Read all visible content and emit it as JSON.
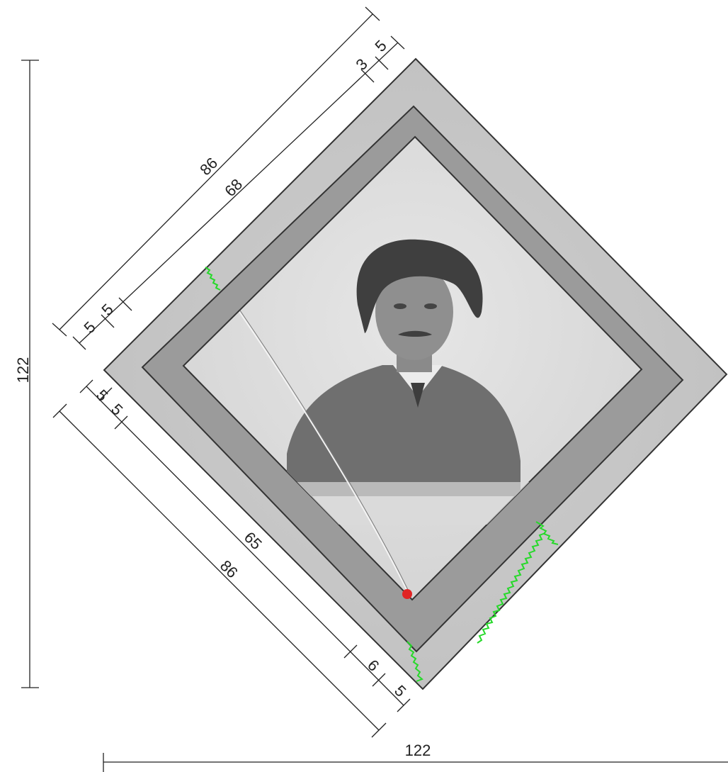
{
  "dimensions": {
    "total_height": "122",
    "total_width": "122",
    "top_edge_outer": "86",
    "top_edge_inner": "68",
    "top_right_margin_a": "3",
    "top_right_margin_b": "5",
    "top_left_margin_a": "5",
    "top_left_margin_b": "5",
    "bottom_edge_outer": "86",
    "bottom_edge_inner": "65",
    "bottom_left_margin_a": "5",
    "bottom_left_margin_b": "5",
    "bottom_right_margin_a": "6",
    "bottom_right_margin_b": "5"
  },
  "colors": {
    "outer_mount": "#c6c6c6",
    "inner_mat": "#9b9b9b",
    "photo": "#dcdcdc",
    "damage_marks": "#26d92a",
    "red_spot": "#e02424",
    "dimension_lines": "#222222"
  },
  "illustration": {
    "subject": "sepia-toned portrait photograph of a young man in a dark suit, shown in grayscale",
    "mount_shape": "diamond (square rotated 45 degrees)"
  }
}
